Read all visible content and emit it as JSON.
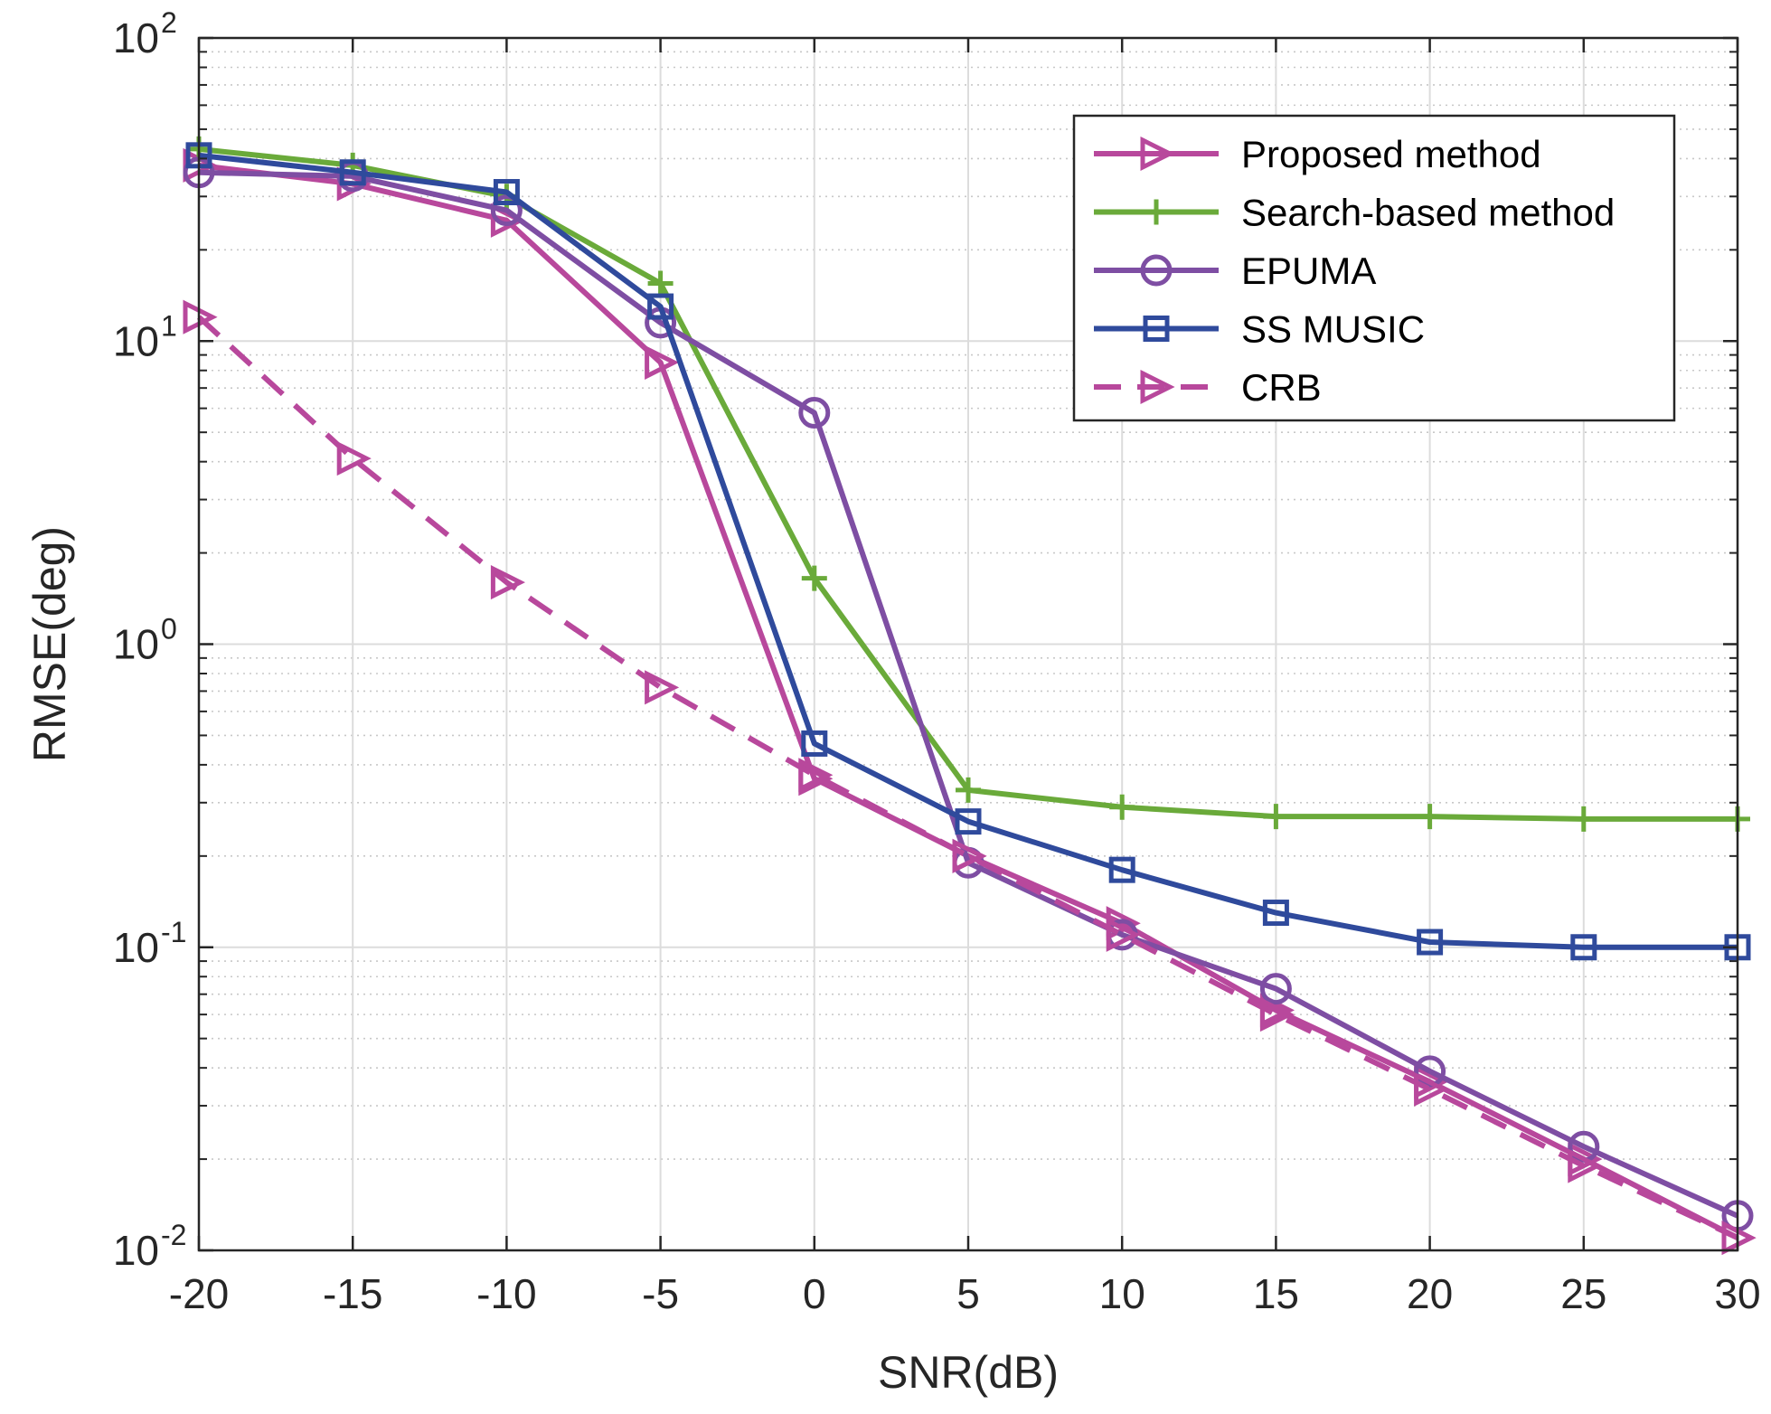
{
  "chart_data": {
    "type": "line",
    "title": "",
    "xlabel": "SNR(dB)",
    "ylabel": "RMSE(deg)",
    "xlim": [
      -20,
      30
    ],
    "ylim": [
      0.01,
      100
    ],
    "yscale": "log",
    "grid": true,
    "legend_position": "top-right",
    "x": [
      -20,
      -15,
      -10,
      -5,
      0,
      5,
      10,
      15,
      20,
      25,
      30
    ],
    "x_tick_labels": [
      "-20",
      "-15",
      "-10",
      "-5",
      "0",
      "5",
      "10",
      "15",
      "20",
      "25",
      "30"
    ],
    "y_ticks": [
      {
        "value": 0.01,
        "base": "10",
        "exp": "-2"
      },
      {
        "value": 0.1,
        "base": "10",
        "exp": "-1"
      },
      {
        "value": 1,
        "base": "10",
        "exp": "0"
      },
      {
        "value": 10,
        "base": "10",
        "exp": "1"
      },
      {
        "value": 100,
        "base": "10",
        "exp": "2"
      }
    ],
    "series": [
      {
        "name": "Proposed method",
        "color": "#b8489c",
        "marker": "triangle-right",
        "dashed": false,
        "values": [
          38,
          33,
          25,
          8.5,
          0.36,
          0.2,
          0.12,
          0.062,
          0.036,
          0.02,
          0.011
        ]
      },
      {
        "name": "Search-based method",
        "color": "#6aaa3a",
        "marker": "plus",
        "dashed": false,
        "values": [
          43,
          38,
          30,
          15.5,
          1.65,
          0.33,
          0.29,
          0.27,
          0.27,
          0.265,
          0.265
        ]
      },
      {
        "name": "EPUMA",
        "color": "#7e4ea3",
        "marker": "circle",
        "dashed": false,
        "values": [
          36,
          35,
          27,
          11.5,
          5.8,
          0.19,
          0.11,
          0.073,
          0.039,
          0.022,
          0.013
        ]
      },
      {
        "name": "SS MUSIC",
        "color": "#2f4a9c",
        "marker": "square",
        "dashed": false,
        "values": [
          41,
          36,
          31,
          13,
          0.47,
          0.26,
          0.18,
          0.13,
          0.104,
          0.1,
          0.1
        ]
      },
      {
        "name": "CRB",
        "color": "#b8489c",
        "marker": "triangle-right",
        "dashed": true,
        "values": [
          12,
          4.1,
          1.6,
          0.72,
          0.37,
          0.2,
          0.11,
          0.06,
          0.034,
          0.019,
          0.011
        ]
      }
    ]
  }
}
